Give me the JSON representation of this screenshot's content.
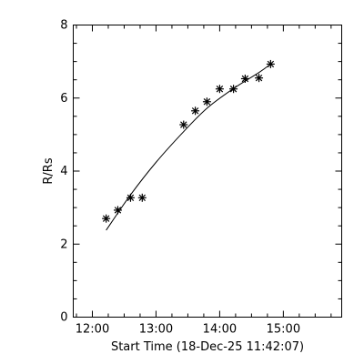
{
  "chart_data": {
    "type": "scatter",
    "title": "",
    "xlabel": "Start Time (18-Dec-25 11:42:07)",
    "ylabel": "R/Rs",
    "x_tick_labels": [
      "12:00",
      "13:00",
      "14:00",
      "15:00"
    ],
    "x_tick_values": [
      "12:00",
      "13:00",
      "14:00",
      "15:00"
    ],
    "y_tick_labels": [
      "0",
      "2",
      "4",
      "6",
      "8"
    ],
    "y_tick_values": [
      0,
      2,
      4,
      6,
      8
    ],
    "xlim": [
      "11:42",
      "15:55"
    ],
    "ylim": [
      0,
      8
    ],
    "grid": false,
    "legend": "none",
    "series": [
      {
        "type": "scatter",
        "marker": "asterisk",
        "x": [
          "12:13",
          "12:24",
          "12:36",
          "12:47",
          "13:26",
          "13:37",
          "13:48",
          "14:00",
          "14:13",
          "14:24",
          "14:37",
          "14:48"
        ],
        "y": [
          2.7,
          2.93,
          3.27,
          3.27,
          5.27,
          5.65,
          5.9,
          6.25,
          6.25,
          6.53,
          6.55,
          6.93
        ]
      },
      {
        "type": "line",
        "x": [
          "12:13",
          "12:36",
          "13:00",
          "13:26",
          "13:48",
          "14:13",
          "14:37",
          "14:48"
        ],
        "y": [
          2.38,
          3.35,
          4.24,
          5.08,
          5.72,
          6.26,
          6.7,
          6.93
        ]
      }
    ],
    "colors": {
      "axes": "#000000",
      "marks": "#000000",
      "background": "#ffffff"
    }
  }
}
